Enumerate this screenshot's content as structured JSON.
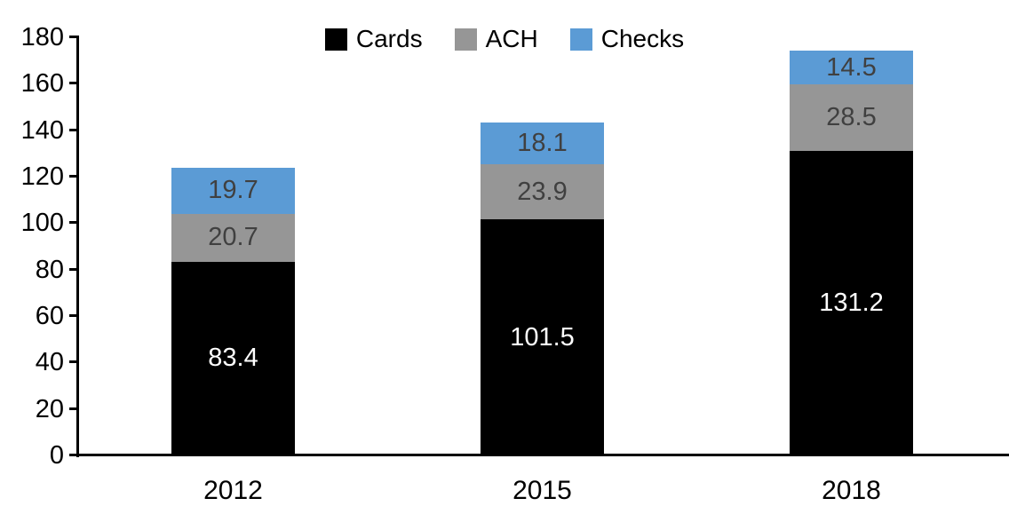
{
  "chart_data": {
    "type": "bar",
    "stacked": true,
    "title": "",
    "categories": [
      "2012",
      "2015",
      "2018"
    ],
    "series": [
      {
        "name": "Cards",
        "color": "#000000",
        "label_color": "#ffffff",
        "values": [
          83.4,
          101.5,
          131.2
        ]
      },
      {
        "name": "ACH",
        "color": "#969696",
        "label_color": "#404040",
        "values": [
          20.7,
          23.9,
          28.5
        ]
      },
      {
        "name": "Checks",
        "color": "#5b9bd5",
        "label_color": "#404040",
        "values": [
          19.7,
          18.1,
          14.5
        ]
      }
    ],
    "xlabel": "",
    "ylabel": "",
    "ylim": [
      0,
      180
    ],
    "ytick_step": 20,
    "yticks": [
      0,
      20,
      40,
      60,
      80,
      100,
      120,
      140,
      160,
      180
    ],
    "legend_position": "top",
    "grid": false,
    "axis_color": "#000000",
    "value_label_decimals": 1
  }
}
